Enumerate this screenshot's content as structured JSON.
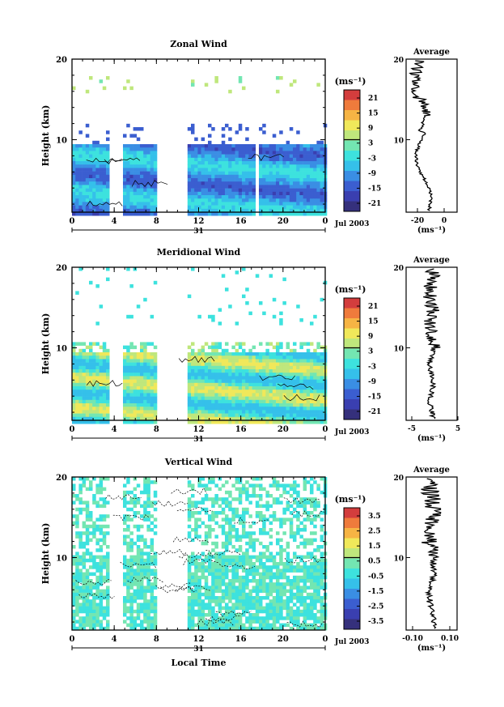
{
  "chart_data": [
    {
      "type": "heatmap",
      "title": "Zonal Wind",
      "ylabel": "Height (km)",
      "ylim": [
        1,
        20
      ],
      "yticks": [
        "20",
        "10"
      ],
      "xticks": [
        "0",
        "4",
        "8",
        "12",
        "16",
        "20",
        "0"
      ],
      "date_label": "31",
      "month_label": "Jul 2003",
      "colorbar": {
        "unit": "(ms⁻¹)",
        "ticks": [
          "21",
          "15",
          "9",
          "3",
          "-3",
          "-9",
          "-15",
          "-21"
        ],
        "colors": [
          "#d33d3d",
          "#ef7b3c",
          "#f6b444",
          "#f0e85a",
          "#bfe77c",
          "#73e6b2",
          "#3de2de",
          "#35c0ea",
          "#3a8ee4",
          "#3b5ed0",
          "#3a3fb0",
          "#35307c"
        ]
      },
      "average": {
        "title": "Average",
        "unit": "(ms⁻¹)",
        "xticks": [
          "-20",
          "0"
        ],
        "yticks": [
          "20",
          "10"
        ]
      }
    },
    {
      "type": "heatmap",
      "title": "Meridional Wind",
      "ylabel": "Height (km)",
      "ylim": [
        1,
        20
      ],
      "yticks": [
        "20",
        "10"
      ],
      "xticks": [
        "0",
        "4",
        "8",
        "12",
        "16",
        "20",
        "0"
      ],
      "date_label": "31",
      "month_label": "Jul 2003",
      "colorbar": {
        "unit": "(ms⁻¹)",
        "ticks": [
          "21",
          "15",
          "9",
          "3",
          "-3",
          "-9",
          "-15",
          "-21"
        ],
        "colors": [
          "#d33d3d",
          "#ef7b3c",
          "#f6b444",
          "#f0e85a",
          "#bfe77c",
          "#73e6b2",
          "#3de2de",
          "#35c0ea",
          "#3a8ee4",
          "#3b5ed0",
          "#3a3fb0",
          "#35307c"
        ]
      },
      "average": {
        "title": "Average",
        "unit": "(ms⁻¹)",
        "xticks": [
          "-5",
          "5"
        ],
        "yticks": [
          "20",
          "10"
        ]
      }
    },
    {
      "type": "heatmap",
      "title": "Vertical Wind",
      "xlabel": "Local Time",
      "ylabel": "Height (km)",
      "ylim": [
        1,
        20
      ],
      "yticks": [
        "20",
        "10"
      ],
      "xticks": [
        "0",
        "4",
        "8",
        "12",
        "16",
        "20",
        "0"
      ],
      "date_label": "31",
      "month_label": "Jul 2003",
      "colorbar": {
        "unit": "(ms⁻¹)",
        "ticks": [
          "3.5",
          "2.5",
          "1.5",
          "0.5",
          "-0.5",
          "-1.5",
          "-2.5",
          "-3.5"
        ],
        "colors": [
          "#d33d3d",
          "#ef7b3c",
          "#f6b444",
          "#f0e85a",
          "#bfe77c",
          "#73e6b2",
          "#3de2de",
          "#35c0ea",
          "#3a8ee4",
          "#3b5ed0",
          "#3a3fb0",
          "#35307c"
        ]
      },
      "average": {
        "title": "Average",
        "unit": "(ms⁻¹)",
        "xticks": [
          "-0.10",
          "0.10"
        ],
        "yticks": [
          "20",
          "10"
        ]
      }
    }
  ]
}
